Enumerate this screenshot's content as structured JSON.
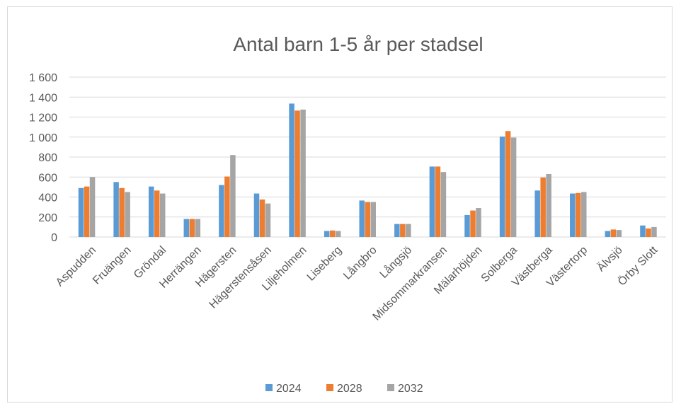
{
  "chart_data": {
    "type": "bar",
    "title": "Antal barn 1-5 år per stadsel",
    "xlabel": "",
    "ylabel": "",
    "ylim": [
      0,
      1600
    ],
    "yticks": [
      0,
      200,
      400,
      600,
      800,
      1000,
      1200,
      1400,
      1600
    ],
    "ytick_labels": [
      "0",
      "200",
      "400",
      "600",
      "800",
      "1 000",
      "1 200",
      "1 400",
      "1 600"
    ],
    "grid": true,
    "legend_position": "bottom",
    "categories": [
      "Aspudden",
      "Fruängen",
      "Gröndal",
      "Herrängen",
      "Hägersten",
      "Hägerstensåsen",
      "Liljeholmen",
      "Liseberg",
      "Långbro",
      "Långsjö",
      "Midsommarkransen",
      "Mälarhöjden",
      "Solberga",
      "Västberga",
      "Västertorp",
      "Älvsjö",
      "Örby Slott"
    ],
    "series": [
      {
        "name": "2024",
        "color": "#5b9bd5",
        "values": [
          490,
          550,
          505,
          180,
          520,
          435,
          1335,
          60,
          365,
          130,
          705,
          220,
          1005,
          465,
          435,
          60,
          115
        ]
      },
      {
        "name": "2028",
        "color": "#ed7d31",
        "values": [
          505,
          490,
          465,
          180,
          605,
          375,
          1265,
          65,
          350,
          130,
          705,
          265,
          1060,
          595,
          440,
          75,
          85
        ]
      },
      {
        "name": "2032",
        "color": "#a5a5a5",
        "values": [
          600,
          450,
          435,
          180,
          820,
          335,
          1275,
          60,
          350,
          130,
          650,
          290,
          995,
          630,
          450,
          70,
          100
        ]
      }
    ]
  }
}
